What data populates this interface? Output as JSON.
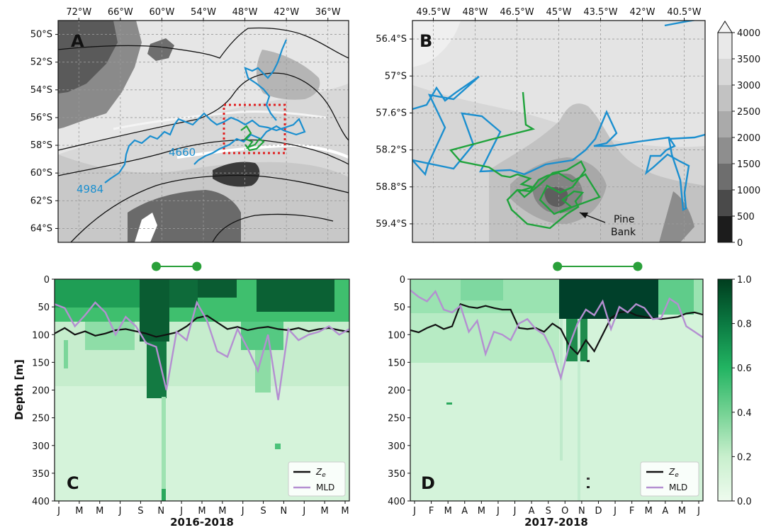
{
  "colors": {
    "float_a": "#1b8fcf",
    "float_b": "#1fa33b",
    "ze": "#111111",
    "mld": "#b48fd1",
    "box": "#e02020",
    "bar": "#2aa03a"
  },
  "chart_data": [
    {
      "panel": "A",
      "type": "map",
      "letter": "A",
      "x_ticks": [
        "72°W",
        "66°W",
        "60°W",
        "54°W",
        "48°W",
        "42°W",
        "36°W"
      ],
      "y_ticks": [
        "50°S",
        "52°S",
        "54°S",
        "56°S",
        "58°S",
        "60°S",
        "62°S",
        "64°S"
      ],
      "float_labels": [
        "4984",
        "4660"
      ],
      "highlight_box": "red dotted box around the panel B region",
      "grid": true
    },
    {
      "panel": "B",
      "type": "map",
      "letter": "B",
      "x_ticks": [
        "49.5°W",
        "48°W",
        "46.5°W",
        "45°W",
        "43.5°W",
        "42°W",
        "40.5°W"
      ],
      "y_ticks": [
        "56.4°S",
        "57°S",
        "57.6°S",
        "58.2°S",
        "58.8°S",
        "59.4°S"
      ],
      "annotation": [
        "Pine",
        "Bank"
      ],
      "colorbar": {
        "ticks": [
          "4000",
          "3500",
          "3000",
          "2500",
          "2000",
          "1500",
          "1000",
          "500",
          "0"
        ],
        "extend": "max",
        "cmap": "greys"
      },
      "grid": true
    },
    {
      "panel": "C",
      "type": "heatmap",
      "letter": "C",
      "ylabel": "Depth [m]",
      "xlabel": "2016-2018",
      "y_ticks": [
        "0",
        "50",
        "100",
        "150",
        "200",
        "250",
        "300",
        "350",
        "400"
      ],
      "ylim": [
        400,
        0
      ],
      "x_ticks": [
        "J",
        "M",
        "M",
        "J",
        "S",
        "N",
        "J",
        "M",
        "M",
        "J",
        "S",
        "N",
        "J",
        "M",
        "M"
      ],
      "month_range": [
        0,
        29
      ],
      "bar_range": [
        10,
        14
      ],
      "legend": [
        "Z",
        "MLD"
      ],
      "legend_position": "lower-right",
      "series": [
        {
          "name": "Ze",
          "x": [
            0,
            1,
            2,
            3,
            4,
            5,
            6,
            7,
            8,
            9,
            10,
            11,
            12,
            13,
            14,
            15,
            16,
            17,
            18,
            19,
            20,
            21,
            22,
            23,
            24,
            25,
            26,
            27,
            28,
            29
          ],
          "y": [
            98,
            88,
            100,
            94,
            102,
            98,
            92,
            90,
            94,
            98,
            104,
            100,
            96,
            85,
            70,
            66,
            78,
            90,
            86,
            92,
            88,
            86,
            90,
            92,
            88,
            94,
            90,
            88,
            92,
            95
          ]
        },
        {
          "name": "MLD",
          "x": [
            0,
            1,
            2,
            3,
            4,
            5,
            6,
            7,
            8,
            9,
            10,
            11,
            12,
            13,
            14,
            15,
            16,
            17,
            18,
            19,
            20,
            21,
            22,
            23,
            24,
            25,
            26,
            27,
            28,
            29
          ],
          "y": [
            45,
            52,
            85,
            65,
            42,
            60,
            100,
            68,
            85,
            115,
            122,
            200,
            95,
            110,
            42,
            75,
            130,
            140,
            90,
            125,
            165,
            100,
            218,
            90,
            110,
            100,
            95,
            85,
            100,
            90
          ]
        }
      ],
      "colorbar": {
        "ticks": [
          "1.0",
          "0.8",
          "0.6",
          "0.4",
          "0.2",
          "0.0"
        ],
        "cmap": "greens"
      }
    },
    {
      "panel": "D",
      "type": "heatmap",
      "letter": "D",
      "xlabel": "2017-2018",
      "y_ticks": [
        "0",
        "50",
        "100",
        "150",
        "200",
        "250",
        "300",
        "350",
        "400"
      ],
      "ylim": [
        400,
        0
      ],
      "x_ticks": [
        "J",
        "F",
        "M",
        "A",
        "M",
        "J",
        "J",
        "A",
        "S",
        "O",
        "N",
        "D",
        "J",
        "F",
        "M",
        "A",
        "M",
        "J"
      ],
      "month_range": [
        0,
        17.5
      ],
      "bar_range": [
        8.8,
        13.6
      ],
      "legend": [
        "Z",
        "MLD"
      ],
      "legend_position": "lower-right",
      "series": [
        {
          "name": "Ze",
          "x": [
            0,
            0.5,
            1,
            1.5,
            2,
            2.5,
            3,
            3.5,
            4,
            4.5,
            5,
            5.5,
            6,
            6.5,
            7,
            7.5,
            8,
            8.5,
            9,
            9.5,
            10,
            10.5,
            11,
            11.5,
            12,
            12.5,
            13,
            13.5,
            14,
            14.5,
            15,
            15.5,
            16,
            16.5,
            17,
            17.5
          ],
          "y": [
            92,
            96,
            88,
            82,
            90,
            85,
            45,
            50,
            52,
            48,
            52,
            55,
            55,
            88,
            90,
            88,
            95,
            80,
            90,
            120,
            135,
            110,
            130,
            100,
            70,
            60,
            58,
            65,
            68,
            70,
            72,
            70,
            68,
            62,
            60,
            64
          ]
        },
        {
          "name": "MLD",
          "x": [
            0,
            0.5,
            1,
            1.5,
            2,
            2.5,
            3,
            3.5,
            4,
            4.5,
            5,
            5.5,
            6,
            6.5,
            7,
            7.5,
            8,
            8.5,
            9,
            9.5,
            10,
            10.5,
            11,
            11.5,
            12,
            12.5,
            13,
            13.5,
            14,
            14.5,
            15,
            15.5,
            16,
            16.5,
            17,
            17.5
          ],
          "y": [
            20,
            32,
            40,
            22,
            55,
            60,
            48,
            95,
            75,
            135,
            95,
            100,
            110,
            80,
            72,
            90,
            100,
            130,
            178,
            120,
            80,
            55,
            65,
            40,
            90,
            50,
            60,
            45,
            52,
            72,
            70,
            35,
            45,
            85,
            95,
            105
          ]
        }
      ]
    }
  ]
}
